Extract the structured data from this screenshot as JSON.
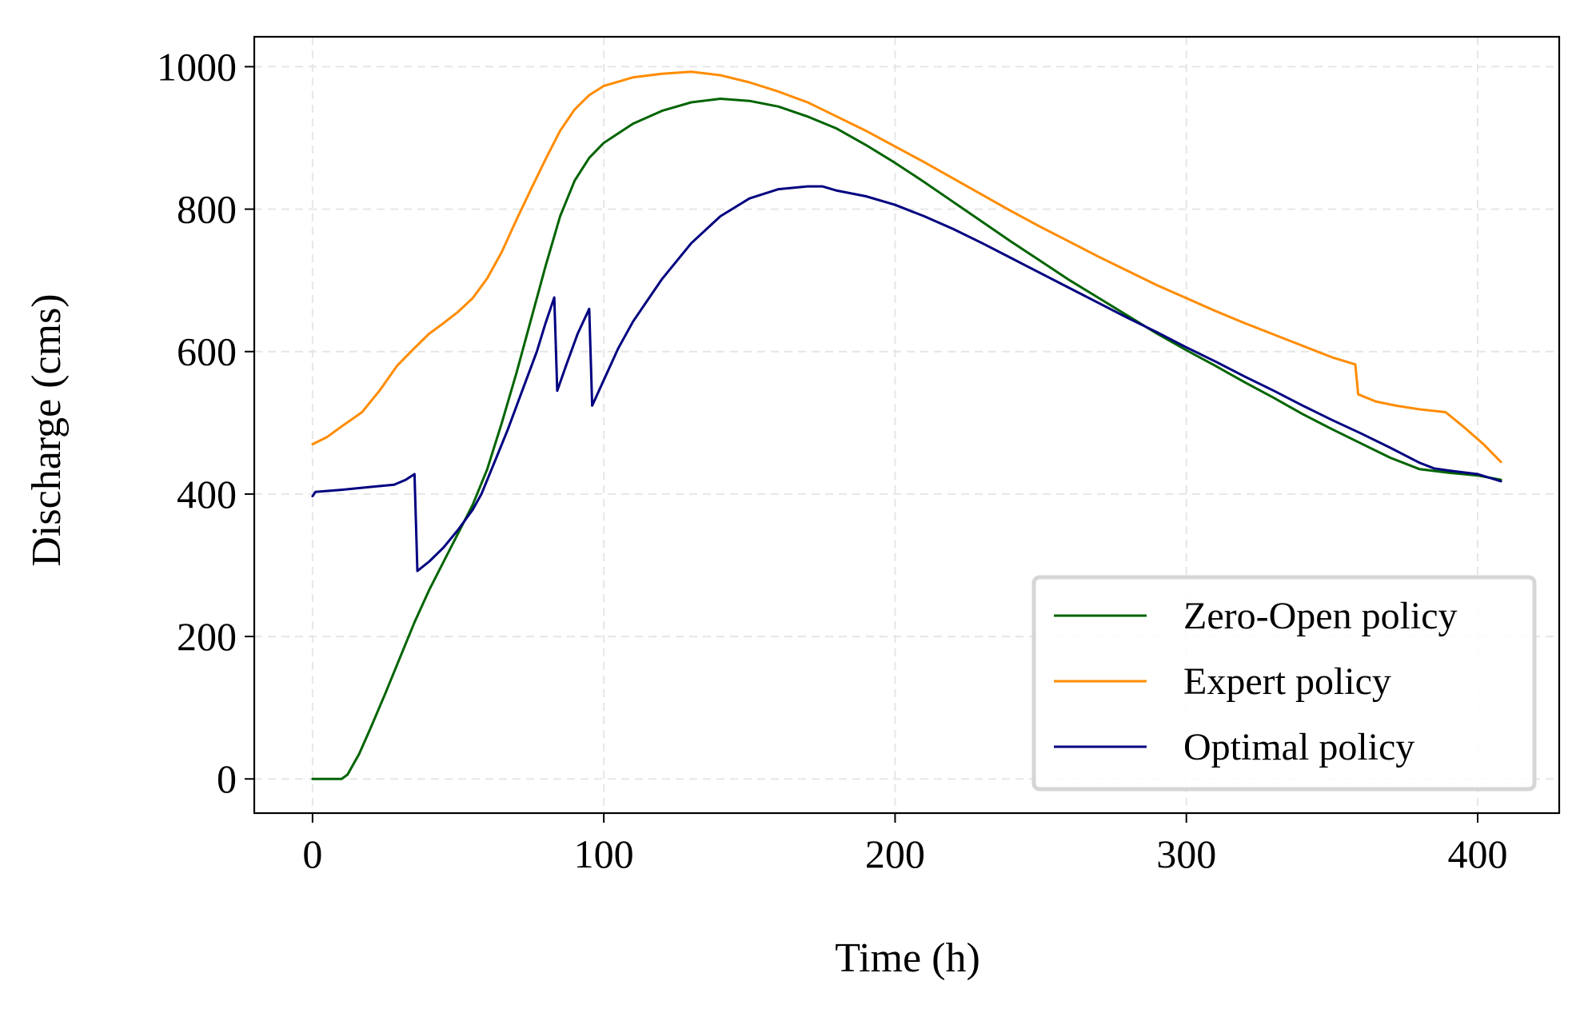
{
  "chart_data": {
    "type": "line",
    "title": "",
    "xlabel": "Time (h)",
    "ylabel": "Discharge (cms)",
    "xlim": [
      -20,
      428
    ],
    "ylim": [
      -48,
      1042
    ],
    "xticks": [
      0,
      100,
      200,
      300,
      400
    ],
    "yticks": [
      0,
      200,
      400,
      600,
      800,
      1000
    ],
    "grid": true,
    "legend_position": "lower-right",
    "series": [
      {
        "name": "Zero-Open policy",
        "color": "#006400",
        "points": [
          [
            0,
            0
          ],
          [
            5,
            0
          ],
          [
            10,
            0
          ],
          [
            12,
            6
          ],
          [
            16,
            35
          ],
          [
            20,
            72
          ],
          [
            25,
            120
          ],
          [
            30,
            170
          ],
          [
            35,
            220
          ],
          [
            40,
            265
          ],
          [
            45,
            305
          ],
          [
            50,
            345
          ],
          [
            55,
            385
          ],
          [
            60,
            435
          ],
          [
            65,
            500
          ],
          [
            70,
            570
          ],
          [
            75,
            645
          ],
          [
            80,
            720
          ],
          [
            85,
            790
          ],
          [
            90,
            840
          ],
          [
            95,
            872
          ],
          [
            100,
            893
          ],
          [
            110,
            920
          ],
          [
            120,
            938
          ],
          [
            130,
            950
          ],
          [
            140,
            955
          ],
          [
            150,
            952
          ],
          [
            160,
            944
          ],
          [
            170,
            930
          ],
          [
            180,
            913
          ],
          [
            190,
            890
          ],
          [
            200,
            865
          ],
          [
            210,
            838
          ],
          [
            220,
            810
          ],
          [
            230,
            782
          ],
          [
            240,
            754
          ],
          [
            250,
            727
          ],
          [
            260,
            700
          ],
          [
            270,
            675
          ],
          [
            280,
            650
          ],
          [
            290,
            625
          ],
          [
            300,
            602
          ],
          [
            310,
            580
          ],
          [
            320,
            557
          ],
          [
            330,
            535
          ],
          [
            340,
            512
          ],
          [
            350,
            491
          ],
          [
            360,
            471
          ],
          [
            370,
            451
          ],
          [
            380,
            435
          ],
          [
            390,
            430
          ],
          [
            400,
            426
          ],
          [
            408,
            420
          ]
        ]
      },
      {
        "name": "Expert policy",
        "color": "#FF8C00",
        "points": [
          [
            0,
            470
          ],
          [
            5,
            480
          ],
          [
            10,
            495
          ],
          [
            17,
            515
          ],
          [
            23,
            545
          ],
          [
            29,
            580
          ],
          [
            35,
            605
          ],
          [
            40,
            625
          ],
          [
            45,
            640
          ],
          [
            50,
            656
          ],
          [
            55,
            675
          ],
          [
            60,
            703
          ],
          [
            65,
            740
          ],
          [
            70,
            785
          ],
          [
            75,
            828
          ],
          [
            80,
            870
          ],
          [
            85,
            910
          ],
          [
            90,
            940
          ],
          [
            95,
            960
          ],
          [
            100,
            973
          ],
          [
            110,
            985
          ],
          [
            120,
            990
          ],
          [
            130,
            993
          ],
          [
            140,
            988
          ],
          [
            150,
            978
          ],
          [
            160,
            965
          ],
          [
            170,
            950
          ],
          [
            180,
            930
          ],
          [
            190,
            910
          ],
          [
            200,
            888
          ],
          [
            210,
            866
          ],
          [
            220,
            843
          ],
          [
            230,
            820
          ],
          [
            240,
            797
          ],
          [
            250,
            775
          ],
          [
            260,
            754
          ],
          [
            270,
            733
          ],
          [
            280,
            713
          ],
          [
            290,
            693
          ],
          [
            300,
            675
          ],
          [
            310,
            657
          ],
          [
            320,
            640
          ],
          [
            330,
            624
          ],
          [
            340,
            608
          ],
          [
            350,
            592
          ],
          [
            358,
            582
          ],
          [
            359,
            540
          ],
          [
            365,
            530
          ],
          [
            372,
            524
          ],
          [
            380,
            519
          ],
          [
            389,
            515
          ],
          [
            395,
            495
          ],
          [
            402,
            470
          ],
          [
            408,
            445
          ]
        ]
      },
      {
        "name": "Optimal policy",
        "color": "#000080",
        "points": [
          [
            0,
            397
          ],
          [
            1,
            403
          ],
          [
            10,
            406
          ],
          [
            20,
            410
          ],
          [
            28,
            413
          ],
          [
            32,
            420
          ],
          [
            35,
            428
          ],
          [
            36,
            292
          ],
          [
            40,
            305
          ],
          [
            45,
            325
          ],
          [
            50,
            350
          ],
          [
            55,
            378
          ],
          [
            58,
            400
          ],
          [
            62,
            440
          ],
          [
            67,
            490
          ],
          [
            72,
            545
          ],
          [
            77,
            600
          ],
          [
            80,
            640
          ],
          [
            83,
            676
          ],
          [
            84,
            545
          ],
          [
            87,
            580
          ],
          [
            91,
            625
          ],
          [
            95,
            660
          ],
          [
            96,
            524
          ],
          [
            100,
            560
          ],
          [
            105,
            605
          ],
          [
            110,
            642
          ],
          [
            120,
            702
          ],
          [
            130,
            752
          ],
          [
            140,
            790
          ],
          [
            150,
            815
          ],
          [
            160,
            828
          ],
          [
            170,
            832
          ],
          [
            175,
            832
          ],
          [
            180,
            826
          ],
          [
            190,
            818
          ],
          [
            200,
            806
          ],
          [
            210,
            790
          ],
          [
            220,
            772
          ],
          [
            230,
            752
          ],
          [
            240,
            731
          ],
          [
            250,
            710
          ],
          [
            260,
            689
          ],
          [
            270,
            668
          ],
          [
            280,
            647
          ],
          [
            290,
            627
          ],
          [
            300,
            606
          ],
          [
            310,
            586
          ],
          [
            320,
            565
          ],
          [
            330,
            545
          ],
          [
            340,
            524
          ],
          [
            350,
            504
          ],
          [
            360,
            485
          ],
          [
            370,
            465
          ],
          [
            380,
            444
          ],
          [
            385,
            436
          ],
          [
            390,
            433
          ],
          [
            400,
            428
          ],
          [
            408,
            418
          ]
        ]
      }
    ]
  }
}
